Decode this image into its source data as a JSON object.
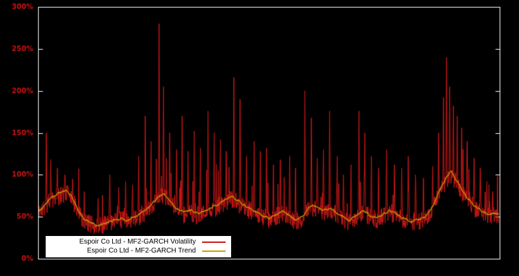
{
  "page": {
    "background": "#000000"
  },
  "chart_data": {
    "type": "line",
    "title": "",
    "xlabel": "",
    "ylabel": "",
    "ylim": [
      0,
      300
    ],
    "grid": false,
    "background": "#000000",
    "axis_color": "#ffffff",
    "tick_label_color": "#cc1414",
    "yticks": [
      "0%",
      "50%",
      "100%",
      "150%",
      "200%",
      "250%",
      "300%"
    ],
    "ytick_values": [
      0,
      50,
      100,
      150,
      200,
      250,
      300
    ],
    "xticks": [],
    "legend": {
      "position": "bottom-left",
      "background": "#ffffff",
      "text_color": "#000000"
    },
    "series": [
      {
        "name": "Espoir Co Ltd - MF2-GARCH Volatility",
        "color": "#cc1818",
        "style": "line"
      },
      {
        "name": "Espoir Co Ltd - MF2-GARCH Trend",
        "color": "#c8a400",
        "style": "line"
      }
    ],
    "trend_points": [
      [
        0.0,
        56
      ],
      [
        0.01,
        60
      ],
      [
        0.02,
        68
      ],
      [
        0.03,
        74
      ],
      [
        0.045,
        78
      ],
      [
        0.06,
        82
      ],
      [
        0.07,
        76
      ],
      [
        0.08,
        66
      ],
      [
        0.09,
        55
      ],
      [
        0.1,
        47
      ],
      [
        0.115,
        43
      ],
      [
        0.13,
        40
      ],
      [
        0.15,
        43
      ],
      [
        0.165,
        46
      ],
      [
        0.18,
        48
      ],
      [
        0.195,
        45
      ],
      [
        0.21,
        50
      ],
      [
        0.225,
        55
      ],
      [
        0.24,
        62
      ],
      [
        0.255,
        70
      ],
      [
        0.27,
        78
      ],
      [
        0.28,
        73
      ],
      [
        0.29,
        66
      ],
      [
        0.3,
        60
      ],
      [
        0.315,
        55
      ],
      [
        0.33,
        58
      ],
      [
        0.345,
        54
      ],
      [
        0.36,
        56
      ],
      [
        0.375,
        62
      ],
      [
        0.39,
        64
      ],
      [
        0.405,
        70
      ],
      [
        0.42,
        74
      ],
      [
        0.435,
        68
      ],
      [
        0.45,
        62
      ],
      [
        0.465,
        58
      ],
      [
        0.48,
        53
      ],
      [
        0.5,
        49
      ],
      [
        0.515,
        52
      ],
      [
        0.53,
        57
      ],
      [
        0.545,
        51
      ],
      [
        0.56,
        46
      ],
      [
        0.575,
        52
      ],
      [
        0.59,
        63
      ],
      [
        0.6,
        64
      ],
      [
        0.615,
        58
      ],
      [
        0.63,
        60
      ],
      [
        0.645,
        56
      ],
      [
        0.66,
        50
      ],
      [
        0.675,
        46
      ],
      [
        0.69,
        52
      ],
      [
        0.705,
        57
      ],
      [
        0.72,
        51
      ],
      [
        0.735,
        48
      ],
      [
        0.75,
        54
      ],
      [
        0.765,
        57
      ],
      [
        0.78,
        51
      ],
      [
        0.795,
        47
      ],
      [
        0.81,
        44
      ],
      [
        0.825,
        47
      ],
      [
        0.84,
        50
      ],
      [
        0.855,
        62
      ],
      [
        0.87,
        82
      ],
      [
        0.885,
        98
      ],
      [
        0.895,
        104
      ],
      [
        0.905,
        96
      ],
      [
        0.915,
        86
      ],
      [
        0.93,
        72
      ],
      [
        0.945,
        63
      ],
      [
        0.96,
        57
      ],
      [
        0.975,
        53
      ],
      [
        0.99,
        55
      ],
      [
        1.0,
        54
      ]
    ],
    "spikes": [
      [
        0.018,
        150
      ],
      [
        0.028,
        118
      ],
      [
        0.042,
        108
      ],
      [
        0.058,
        100
      ],
      [
        0.075,
        95
      ],
      [
        0.1,
        80
      ],
      [
        0.13,
        72
      ],
      [
        0.155,
        100
      ],
      [
        0.175,
        85
      ],
      [
        0.19,
        92
      ],
      [
        0.205,
        88
      ],
      [
        0.218,
        122
      ],
      [
        0.232,
        170
      ],
      [
        0.245,
        140
      ],
      [
        0.262,
        280
      ],
      [
        0.272,
        205
      ],
      [
        0.285,
        150
      ],
      [
        0.3,
        130
      ],
      [
        0.312,
        170
      ],
      [
        0.325,
        128
      ],
      [
        0.338,
        152
      ],
      [
        0.352,
        132
      ],
      [
        0.368,
        176
      ],
      [
        0.382,
        150
      ],
      [
        0.395,
        142
      ],
      [
        0.408,
        128
      ],
      [
        0.424,
        216
      ],
      [
        0.438,
        190
      ],
      [
        0.452,
        122
      ],
      [
        0.468,
        140
      ],
      [
        0.482,
        128
      ],
      [
        0.495,
        132
      ],
      [
        0.51,
        112
      ],
      [
        0.525,
        118
      ],
      [
        0.545,
        122
      ],
      [
        0.558,
        108
      ],
      [
        0.578,
        200
      ],
      [
        0.592,
        168
      ],
      [
        0.605,
        120
      ],
      [
        0.618,
        130
      ],
      [
        0.632,
        176
      ],
      [
        0.648,
        122
      ],
      [
        0.662,
        100
      ],
      [
        0.678,
        112
      ],
      [
        0.695,
        176
      ],
      [
        0.708,
        150
      ],
      [
        0.722,
        122
      ],
      [
        0.738,
        108
      ],
      [
        0.755,
        130
      ],
      [
        0.772,
        112
      ],
      [
        0.788,
        108
      ],
      [
        0.802,
        122
      ],
      [
        0.818,
        100
      ],
      [
        0.835,
        96
      ],
      [
        0.855,
        110
      ],
      [
        0.868,
        150
      ],
      [
        0.878,
        192
      ],
      [
        0.885,
        240
      ],
      [
        0.892,
        205
      ],
      [
        0.9,
        182
      ],
      [
        0.908,
        170
      ],
      [
        0.918,
        156
      ],
      [
        0.93,
        140
      ],
      [
        0.945,
        120
      ],
      [
        0.958,
        108
      ],
      [
        0.972,
        92
      ],
      [
        0.985,
        80
      ]
    ],
    "noise": {
      "volatility_amplitude": 11,
      "volatility_spike_prob": 0.05,
      "volatility_spike_scale": 55,
      "trend_amplitude": 3,
      "min_value": 30,
      "seed_volatility": 987654321,
      "seed_trend": 123457
    }
  }
}
